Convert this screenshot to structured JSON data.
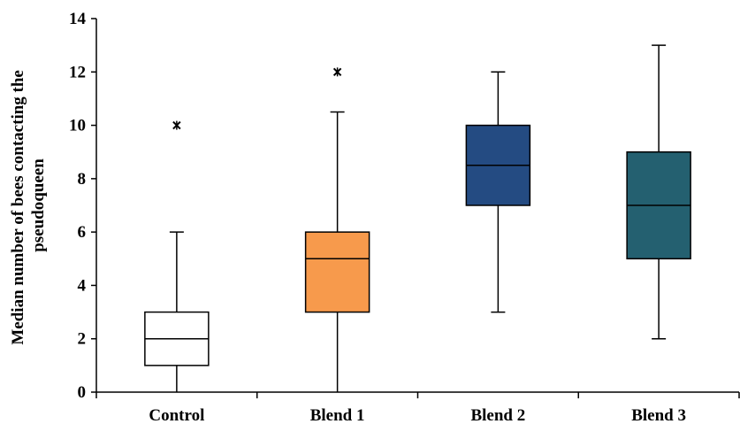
{
  "chart_data": {
    "type": "box",
    "title": "",
    "xlabel": "",
    "ylabel_lines": [
      "Median number of bees contacting the",
      "pseudoqueen"
    ],
    "ylim": [
      0,
      14
    ],
    "yticks": [
      0,
      2,
      4,
      6,
      8,
      10,
      12,
      14
    ],
    "grid": false,
    "legend": "none",
    "categories": [
      "Control",
      "Blend 1",
      "Blend 2",
      "Blend 3"
    ],
    "boxes": [
      {
        "category": "Control",
        "min": 0,
        "q1": 1,
        "median": 2,
        "q3": 3,
        "max": 6,
        "outliers": [
          10
        ],
        "color": "#ffffff"
      },
      {
        "category": "Blend 1",
        "min": 0,
        "q1": 3,
        "median": 5,
        "q3": 6,
        "max": 10.5,
        "outliers": [
          12
        ],
        "color": "#f79a4c"
      },
      {
        "category": "Blend 2",
        "min": 3,
        "q1": 7,
        "median": 8.5,
        "q3": 10,
        "max": 12,
        "outliers": [],
        "color": "#244b82"
      },
      {
        "category": "Blend 3",
        "min": 2,
        "q1": 5,
        "median": 7,
        "q3": 9,
        "max": 13,
        "outliers": [],
        "color": "#246070"
      }
    ]
  }
}
